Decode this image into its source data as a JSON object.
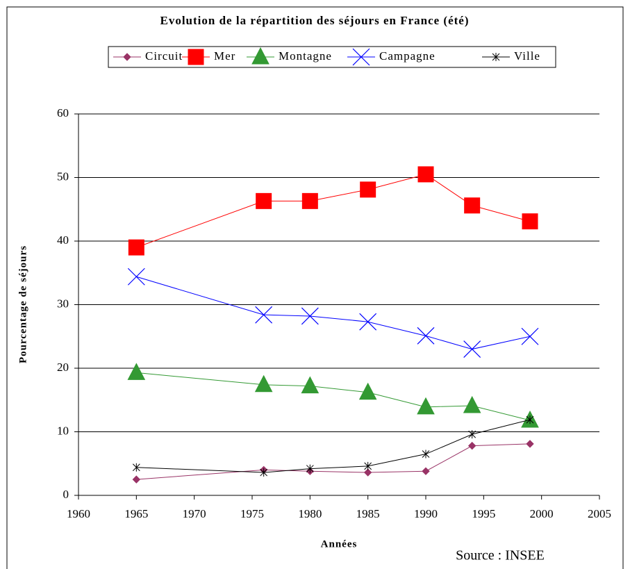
{
  "chart_data": {
    "type": "line",
    "title": "Evolution de la répartition des séjours en France (été)",
    "xlabel": "Années",
    "ylabel": "Pourcentage de séjours",
    "annotation": "Source : INSEE",
    "x": [
      1965,
      1976,
      1980,
      1985,
      1990,
      1994,
      1999
    ],
    "xlim": [
      1960,
      2005
    ],
    "xticks": [
      1960,
      1965,
      1970,
      1975,
      1980,
      1985,
      1990,
      1995,
      2000,
      2005
    ],
    "ylim": [
      0,
      60
    ],
    "yticks": [
      0,
      10,
      20,
      30,
      40,
      50,
      60
    ],
    "grid": true,
    "legend": "top",
    "series": [
      {
        "name": "Circuit",
        "color": "#993366",
        "marker": "diamond",
        "values": [
          2.5,
          4.0,
          3.8,
          3.6,
          3.8,
          7.8,
          8.1
        ]
      },
      {
        "name": "Mer",
        "color": "#ff0000",
        "marker": "square",
        "values": [
          39.0,
          46.3,
          46.3,
          48.1,
          50.5,
          45.6,
          43.1
        ]
      },
      {
        "name": "Montagne",
        "color": "#339933",
        "marker": "triangle",
        "values": [
          19.3,
          17.4,
          17.2,
          16.2,
          13.9,
          14.1,
          11.8
        ]
      },
      {
        "name": "Campagne",
        "color": "#0000ff",
        "marker": "x",
        "values": [
          34.4,
          28.4,
          28.2,
          27.3,
          25.1,
          23.0,
          25.0
        ]
      },
      {
        "name": "Ville",
        "color": "#000000",
        "marker": "star",
        "values": [
          4.4,
          3.6,
          4.2,
          4.6,
          6.5,
          9.6,
          11.9
        ]
      }
    ]
  }
}
